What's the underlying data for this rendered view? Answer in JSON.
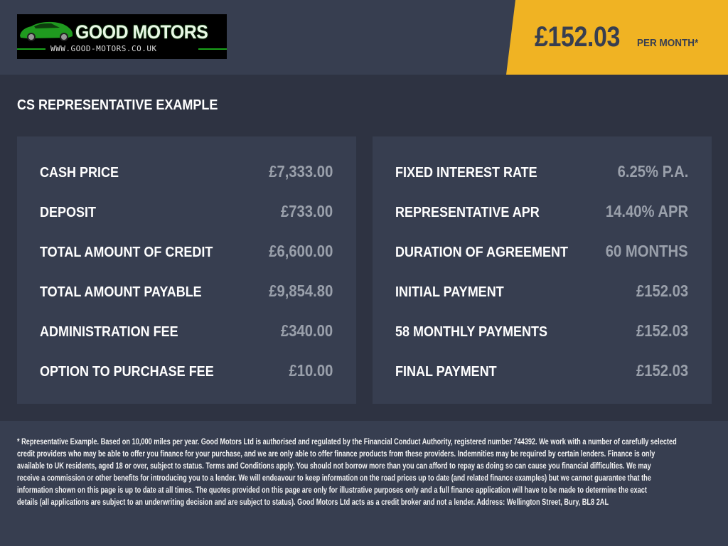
{
  "header": {
    "logo": {
      "name": "GOOD MOTORS",
      "url": "WWW.GOOD-MOTORS.CO.UK"
    },
    "monthly_price": "£152.03",
    "per_month_label": "PER MONTH*",
    "accent_color": "#f0b323"
  },
  "title": "CS REPRESENTATIVE EXAMPLE",
  "left_panel": [
    {
      "label": "CASH PRICE",
      "value": "£7,333.00"
    },
    {
      "label": "DEPOSIT",
      "value": "£733.00"
    },
    {
      "label": "TOTAL AMOUNT OF CREDIT",
      "value": "£6,600.00"
    },
    {
      "label": "TOTAL AMOUNT PAYABLE",
      "value": "£9,854.80"
    },
    {
      "label": "ADMINISTRATION FEE",
      "value": "£340.00"
    },
    {
      "label": "OPTION TO PURCHASE FEE",
      "value": "£10.00"
    }
  ],
  "right_panel": [
    {
      "label": "FIXED INTEREST RATE",
      "value": "6.25% P.A."
    },
    {
      "label": "REPRESENTATIVE APR",
      "value": "14.40% APR"
    },
    {
      "label": "DURATION OF AGREEMENT",
      "value": "60 MONTHS"
    },
    {
      "label": "INITIAL PAYMENT",
      "value": "£152.03"
    },
    {
      "label": "58 MONTHLY PAYMENTS",
      "value": "£152.03"
    },
    {
      "label": "FINAL PAYMENT",
      "value": "£152.03"
    }
  ],
  "disclaimer_lines": [
    "* Representative Example. Based on 10,000 miles per year. Good Motors Ltd is authorised and regulated by the Financial Conduct Authority, registered number 744392. We work with a number of carefully selected",
    "credit providers who may be able to offer you finance for your purchase, and we are only able to offer finance products from these providers. Indemnities may be required by certain lenders. Finance is only",
    "available to UK residents, aged 18 or over, subject to status. Terms and Conditions apply. You should not borrow more than you can afford to repay as doing so can cause you financial difficulties. We may",
    "receive a commission or other benefits for introducing you to a lender. We will endeavour to keep information on the road prices up to date (and related finance examples) but we cannot guarantee that the",
    "information shown on this page is up to date at all times. The quotes provided on this page are only for illustrative purposes only and a full finance application will have to be made to determine the exact",
    "details (all applications are subject to an underwriting decision and are subject to status). Good Motors Ltd acts as a credit broker and not a lender. Address: Wellington Street, Bury, BL8 2AL"
  ]
}
